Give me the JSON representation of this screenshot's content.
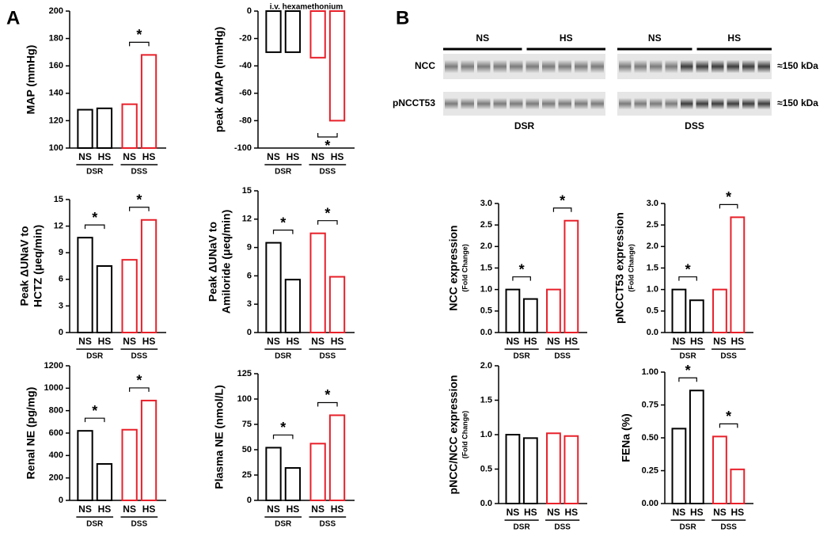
{
  "panels": [
    "A",
    "B"
  ],
  "blot": {
    "rows": [
      "NCC",
      "pNCCT53"
    ],
    "size_labels": [
      "≈150 kDa",
      "≈150 kDa"
    ],
    "lane_groups": [
      "NS",
      "HS",
      "NS",
      "HS"
    ],
    "strains": [
      "DSR",
      "DSS"
    ]
  },
  "chart_data": [
    {
      "type": "bar",
      "ylabel": [
        "MAP (mmHg)"
      ],
      "categories": [
        "NS",
        "HS",
        "NS",
        "HS"
      ],
      "groups": [
        "DSR",
        "DSS"
      ],
      "values": [
        128,
        129,
        132,
        168
      ],
      "colors": [
        "#000000",
        "#000000",
        "#e8202a",
        "#e8202a"
      ],
      "ylim": [
        100,
        200
      ],
      "yticks": [
        100,
        120,
        140,
        160,
        180,
        200
      ],
      "annotations": [
        "*"
      ]
    },
    {
      "type": "bar",
      "title": "i.v. hexamethonium",
      "ylabel": [
        "peak ΔMAP (mmHg)"
      ],
      "categories": [
        "NS",
        "HS",
        "NS",
        "HS"
      ],
      "groups": [
        "DSR",
        "DSS"
      ],
      "values": [
        -30,
        -30,
        -34,
        -80
      ],
      "colors": [
        "#000000",
        "#000000",
        "#e8202a",
        "#e8202a"
      ],
      "ylim": [
        -100,
        0
      ],
      "yticks": [
        0,
        -20,
        -40,
        -60,
        -80,
        -100
      ],
      "annotations": [
        "*"
      ]
    },
    {
      "type": "bar",
      "ylabel": [
        "Peak ΔUNaV to",
        "HCTZ (μeq/min)"
      ],
      "categories": [
        "NS",
        "HS",
        "NS",
        "HS"
      ],
      "groups": [
        "DSR",
        "DSS"
      ],
      "values": [
        10.7,
        7.5,
        8.2,
        12.7
      ],
      "colors": [
        "#000000",
        "#000000",
        "#e8202a",
        "#e8202a"
      ],
      "ylim": [
        0,
        15
      ],
      "yticks": [
        0,
        3,
        6,
        9,
        12,
        15
      ],
      "annotations": [
        "*",
        "*"
      ]
    },
    {
      "type": "bar",
      "ylabel": [
        "Peak ΔUNaV to",
        "Amiloride (μeq/min)"
      ],
      "categories": [
        "NS",
        "HS",
        "NS",
        "HS"
      ],
      "groups": [
        "DSR",
        "DSS"
      ],
      "values": [
        9.5,
        5.6,
        10.5,
        5.9
      ],
      "colors": [
        "#000000",
        "#000000",
        "#e8202a",
        "#e8202a"
      ],
      "ylim": [
        0,
        15
      ],
      "yticks": [
        0,
        3,
        6,
        9,
        12,
        15
      ],
      "annotations": [
        "*",
        "*"
      ]
    },
    {
      "type": "bar",
      "ylabel": [
        "Renal NE (pg/mg)"
      ],
      "categories": [
        "NS",
        "HS",
        "NS",
        "HS"
      ],
      "groups": [
        "DSR",
        "DSS"
      ],
      "values": [
        620,
        325,
        630,
        890
      ],
      "colors": [
        "#000000",
        "#000000",
        "#e8202a",
        "#e8202a"
      ],
      "ylim": [
        0,
        1200
      ],
      "yticks": [
        0,
        200,
        400,
        600,
        800,
        1000,
        1200
      ],
      "annotations": [
        "*",
        "*"
      ]
    },
    {
      "type": "bar",
      "ylabel": [
        "Plasma NE (nmol/L)"
      ],
      "categories": [
        "NS",
        "HS",
        "NS",
        "HS"
      ],
      "groups": [
        "DSR",
        "DSS"
      ],
      "values": [
        52,
        32,
        56,
        84
      ],
      "colors": [
        "#000000",
        "#000000",
        "#e8202a",
        "#e8202a"
      ],
      "ylim": [
        0,
        125
      ],
      "yticks": [
        0,
        25,
        50,
        75,
        100,
        125
      ],
      "annotations": [
        "*",
        "*"
      ]
    },
    {
      "type": "bar",
      "ylabel": [
        "NCC expression"
      ],
      "ylabel_sub": "(Fold Change)",
      "categories": [
        "NS",
        "HS",
        "NS",
        "HS"
      ],
      "groups": [
        "DSR",
        "DSS"
      ],
      "values": [
        1.0,
        0.78,
        1.0,
        2.6
      ],
      "colors": [
        "#000000",
        "#000000",
        "#e8202a",
        "#e8202a"
      ],
      "ylim": [
        0,
        3
      ],
      "yticks": [
        {
          "value": 0,
          "label": "0.0"
        },
        0.5,
        {
          "value": 1,
          "label": "1.0"
        },
        1.5,
        {
          "value": 2,
          "label": "2.0"
        },
        2.5,
        {
          "value": 3,
          "label": "3.0"
        }
      ],
      "annotations": [
        "*",
        "*"
      ]
    },
    {
      "type": "bar",
      "ylabel": [
        "pNCCT53 expression"
      ],
      "ylabel_sub": "(Fold Change)",
      "categories": [
        "NS",
        "HS",
        "NS",
        "HS"
      ],
      "groups": [
        "DSR",
        "DSS"
      ],
      "values": [
        1.0,
        0.75,
        1.0,
        2.68
      ],
      "colors": [
        "#000000",
        "#000000",
        "#e8202a",
        "#e8202a"
      ],
      "ylim": [
        0,
        3
      ],
      "yticks": [
        {
          "value": 0,
          "label": "0.0"
        },
        0.5,
        {
          "value": 1,
          "label": "1.0"
        },
        1.5,
        {
          "value": 2,
          "label": "2.0"
        },
        2.5,
        {
          "value": 3,
          "label": "3.0"
        }
      ],
      "annotations": [
        "*",
        "*"
      ]
    },
    {
      "type": "bar",
      "ylabel": [
        "pNCC/NCC expression"
      ],
      "ylabel_sub": "(Fold Change)",
      "categories": [
        "NS",
        "HS",
        "NS",
        "HS"
      ],
      "groups": [
        "DSR",
        "DSS"
      ],
      "values": [
        1.0,
        0.95,
        1.02,
        0.98
      ],
      "colors": [
        "#000000",
        "#000000",
        "#e8202a",
        "#e8202a"
      ],
      "ylim": [
        0,
        2
      ],
      "yticks": [
        {
          "value": 0,
          "label": "0.0"
        },
        0.5,
        {
          "value": 1,
          "label": "1.0"
        },
        1.5,
        {
          "value": 2,
          "label": "2.0"
        }
      ],
      "annotations": []
    },
    {
      "type": "bar",
      "ylabel": [
        "FENa (%)"
      ],
      "categories": [
        "NS",
        "HS",
        "NS",
        "HS"
      ],
      "groups": [
        "DSR",
        "DSS"
      ],
      "values": [
        0.57,
        0.86,
        0.51,
        0.26
      ],
      "colors": [
        "#000000",
        "#000000",
        "#e8202a",
        "#e8202a"
      ],
      "ylim": [
        0,
        1
      ],
      "yticks": [
        {
          "value": 0,
          "label": "0.00"
        },
        0.25,
        {
          "value": 0.5,
          "label": "0.50"
        },
        0.75,
        {
          "value": 1,
          "label": "1.00"
        }
      ],
      "annotations": [
        "*",
        "*"
      ]
    }
  ]
}
